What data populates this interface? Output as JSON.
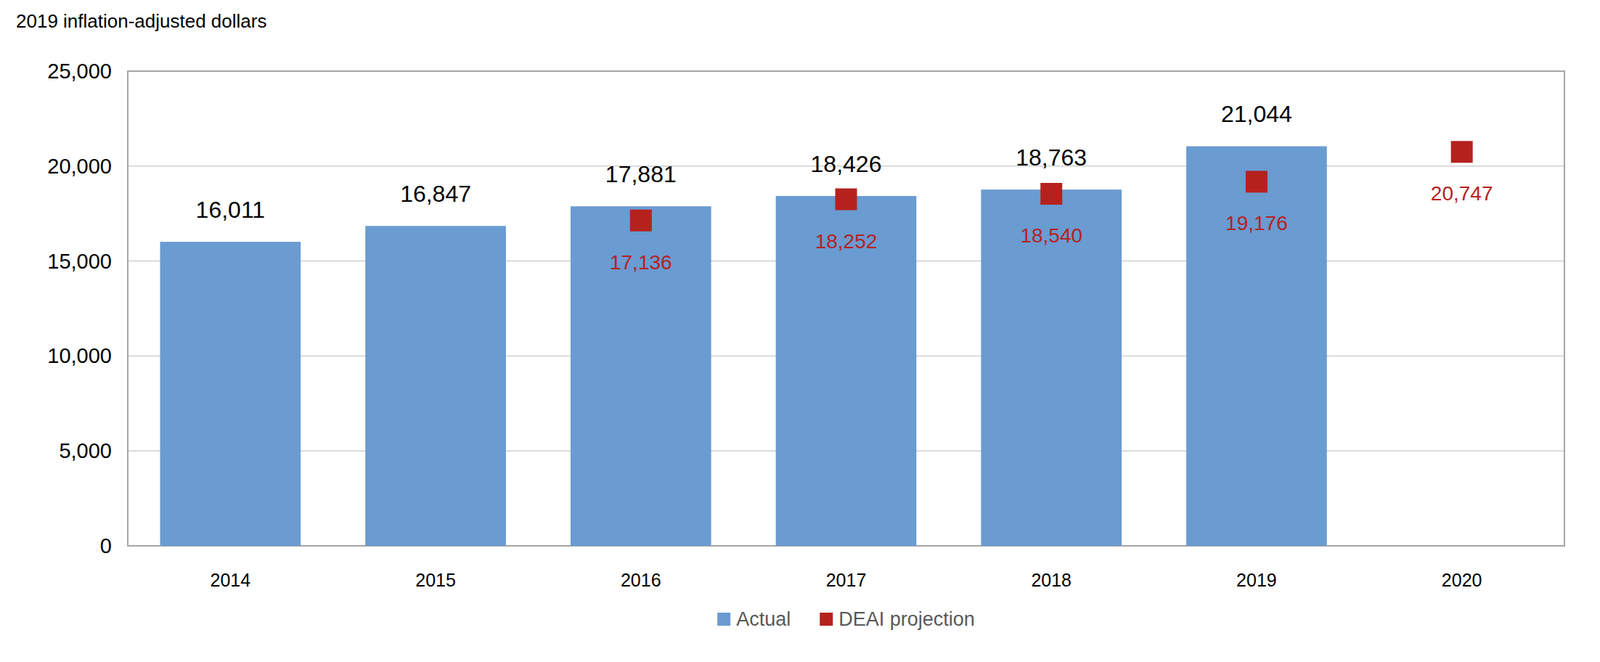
{
  "chart_data": {
    "type": "bar",
    "y_axis_label": "2019 inflation-adjusted dollars",
    "categories": [
      "2014",
      "2015",
      "2016",
      "2017",
      "2018",
      "2019",
      "2020"
    ],
    "series": [
      {
        "name": "Actual",
        "type": "bar",
        "color": "#6a9bd1",
        "values": [
          16011,
          16847,
          17881,
          18426,
          18763,
          21044,
          null
        ],
        "value_labels": [
          "16,011",
          "16,847",
          "17,881",
          "18,426",
          "18,763",
          "21,044",
          null
        ]
      },
      {
        "name": "DEAI projection",
        "type": "scatter",
        "marker": "square",
        "color": "#b5221e",
        "values": [
          null,
          null,
          17136,
          18252,
          18540,
          19176,
          20747
        ],
        "value_labels": [
          null,
          null,
          "17,136",
          "18,252",
          "18,540",
          "19,176",
          "20,747"
        ]
      }
    ],
    "ylim": [
      0,
      25000
    ],
    "yticks": [
      0,
      {
        "value": 5000,
        "label": "5,000"
      },
      {
        "value": 10000,
        "label": "10,000"
      },
      {
        "value": 15000,
        "label": "15,000"
      },
      {
        "value": 20000,
        "label": "20,000"
      },
      {
        "value": 25000,
        "label": "25,000"
      }
    ],
    "grid": true,
    "data_labels": true,
    "legend": "bottom"
  }
}
